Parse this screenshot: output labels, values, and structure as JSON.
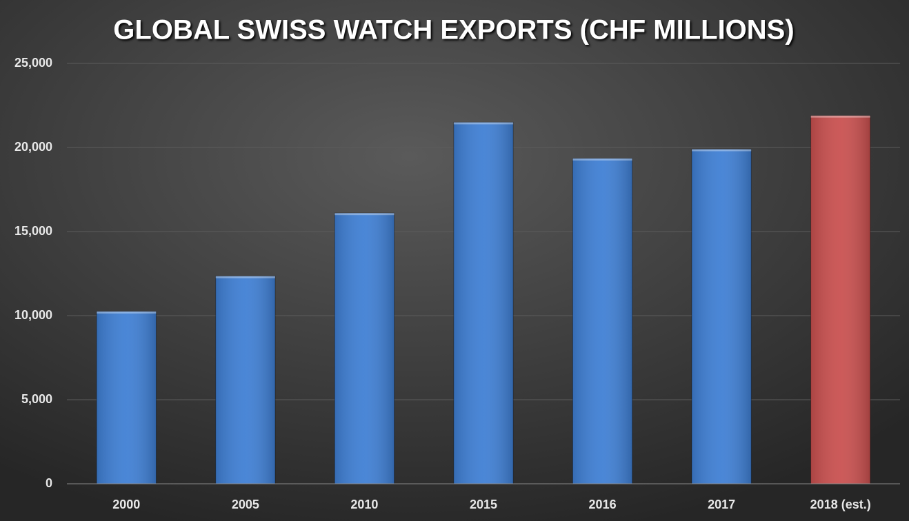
{
  "chart_data": {
    "type": "bar",
    "title": "GLOBAL SWISS WATCH EXPORTS (CHF MILLIONS)",
    "categories": [
      "2000",
      "2005",
      "2010",
      "2015",
      "2016",
      "2017",
      "2018 (est.)"
    ],
    "values": [
      10250,
      12350,
      16100,
      21500,
      19350,
      19900,
      21900
    ],
    "colors": [
      "#3f7fd4",
      "#3f7fd4",
      "#3f7fd4",
      "#3f7fd4",
      "#3f7fd4",
      "#3f7fd4",
      "#c9504f"
    ],
    "ylim": [
      0,
      25000
    ],
    "yticks": [
      0,
      {
        "value": 5000,
        "label": "5,000"
      },
      {
        "value": 10000,
        "label": "10,000"
      },
      {
        "value": 15000,
        "label": "15,000"
      },
      {
        "value": 20000,
        "label": "20,000"
      },
      {
        "value": 25000,
        "label": "25,000"
      }
    ],
    "grid": true
  }
}
